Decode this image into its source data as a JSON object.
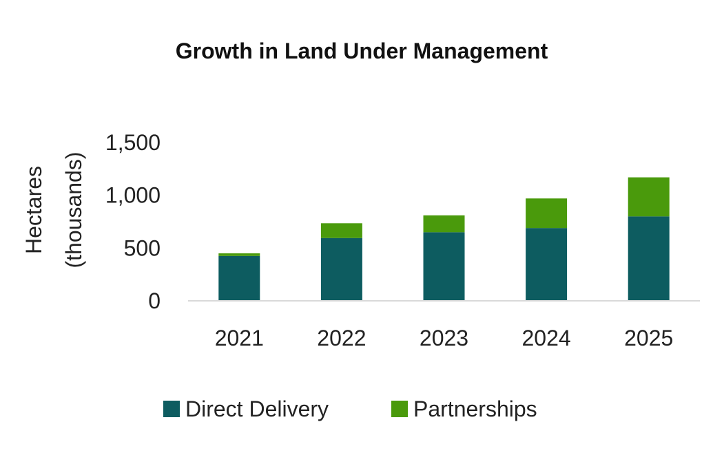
{
  "chart_data": {
    "type": "bar",
    "stacked": true,
    "title": "Growth in Land Under Management",
    "ylabel_line1": "Hectares",
    "ylabel_line2": "(thousands)",
    "xlabel": "",
    "categories": [
      "2021",
      "2022",
      "2023",
      "2024",
      "2025"
    ],
    "series": [
      {
        "name": "Direct Delivery",
        "color": "#0d5c60",
        "values": [
          425,
          595,
          650,
          690,
          800
        ]
      },
      {
        "name": "Partnerships",
        "color": "#4a9a0c",
        "values": [
          25,
          140,
          160,
          280,
          370
        ]
      }
    ],
    "yticks": [
      0,
      500,
      1000,
      1500
    ],
    "ytick_labels": [
      "0",
      "500",
      "1,000",
      "1,500"
    ],
    "ylim": [
      0,
      1500
    ],
    "grid": false,
    "legend_position": "bottom"
  }
}
